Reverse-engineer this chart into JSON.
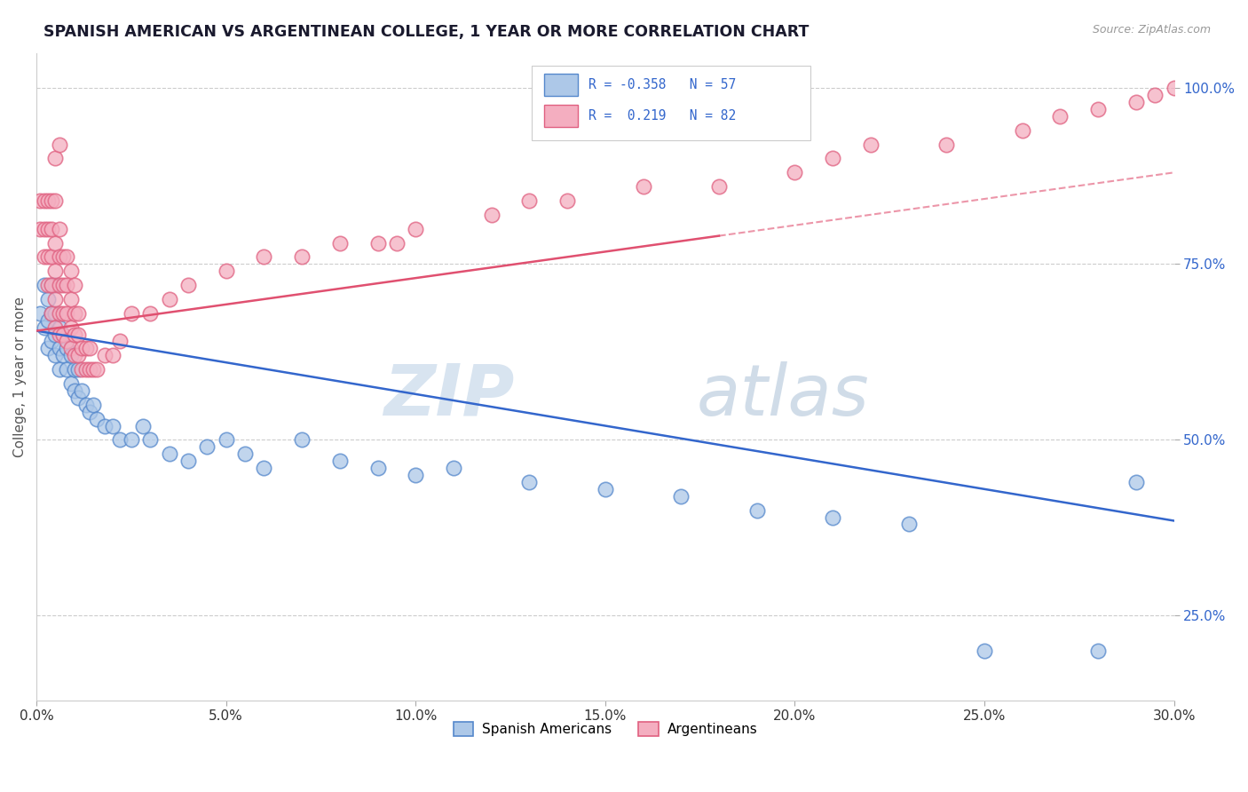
{
  "title": "SPANISH AMERICAN VS ARGENTINEAN COLLEGE, 1 YEAR OR MORE CORRELATION CHART",
  "source": "Source: ZipAtlas.com",
  "ylabel": "College, 1 year or more",
  "xlim": [
    0.0,
    0.3
  ],
  "ylim": [
    0.13,
    1.05
  ],
  "xticks": [
    0.0,
    0.05,
    0.1,
    0.15,
    0.2,
    0.25,
    0.3
  ],
  "yticks": [
    0.25,
    0.5,
    0.75,
    1.0
  ],
  "ytick_labels": [
    "25.0%",
    "50.0%",
    "75.0%",
    "100.0%"
  ],
  "xtick_labels": [
    "0.0%",
    "5.0%",
    "10.0%",
    "15.0%",
    "20.0%",
    "25.0%",
    "30.0%"
  ],
  "blue_R": -0.358,
  "blue_N": 57,
  "pink_R": 0.219,
  "pink_N": 82,
  "blue_color": "#adc8e8",
  "pink_color": "#f4aec0",
  "blue_edge_color": "#5588cc",
  "pink_edge_color": "#e06080",
  "blue_line_color": "#3366cc",
  "pink_line_color": "#e05070",
  "watermark_zip": "ZIP",
  "watermark_atlas": "atlas",
  "legend_blue_label": "Spanish Americans",
  "legend_pink_label": "Argentineans",
  "blue_line_y0": 0.655,
  "blue_line_y1": 0.385,
  "pink_line_y0": 0.655,
  "pink_line_y1": 0.88,
  "blue_scatter_x": [
    0.001,
    0.002,
    0.002,
    0.003,
    0.003,
    0.003,
    0.004,
    0.004,
    0.004,
    0.005,
    0.005,
    0.005,
    0.005,
    0.006,
    0.006,
    0.006,
    0.007,
    0.007,
    0.008,
    0.008,
    0.009,
    0.009,
    0.01,
    0.01,
    0.011,
    0.011,
    0.012,
    0.013,
    0.014,
    0.015,
    0.016,
    0.018,
    0.02,
    0.022,
    0.025,
    0.028,
    0.03,
    0.035,
    0.04,
    0.045,
    0.05,
    0.055,
    0.06,
    0.07,
    0.08,
    0.09,
    0.1,
    0.11,
    0.13,
    0.15,
    0.17,
    0.19,
    0.21,
    0.23,
    0.25,
    0.28,
    0.29
  ],
  "blue_scatter_y": [
    0.68,
    0.66,
    0.72,
    0.63,
    0.67,
    0.7,
    0.64,
    0.68,
    0.72,
    0.62,
    0.65,
    0.68,
    0.72,
    0.6,
    0.63,
    0.66,
    0.62,
    0.65,
    0.6,
    0.63,
    0.58,
    0.62,
    0.57,
    0.6,
    0.56,
    0.6,
    0.57,
    0.55,
    0.54,
    0.55,
    0.53,
    0.52,
    0.52,
    0.5,
    0.5,
    0.52,
    0.5,
    0.48,
    0.47,
    0.49,
    0.5,
    0.48,
    0.46,
    0.5,
    0.47,
    0.46,
    0.45,
    0.46,
    0.44,
    0.43,
    0.42,
    0.4,
    0.39,
    0.38,
    0.2,
    0.2,
    0.44
  ],
  "pink_scatter_x": [
    0.001,
    0.001,
    0.002,
    0.002,
    0.002,
    0.003,
    0.003,
    0.003,
    0.003,
    0.004,
    0.004,
    0.004,
    0.004,
    0.004,
    0.005,
    0.005,
    0.005,
    0.005,
    0.005,
    0.006,
    0.006,
    0.006,
    0.006,
    0.006,
    0.007,
    0.007,
    0.007,
    0.007,
    0.008,
    0.008,
    0.008,
    0.008,
    0.009,
    0.009,
    0.009,
    0.009,
    0.01,
    0.01,
    0.01,
    0.01,
    0.011,
    0.011,
    0.011,
    0.012,
    0.012,
    0.013,
    0.013,
    0.014,
    0.014,
    0.015,
    0.016,
    0.018,
    0.02,
    0.022,
    0.025,
    0.03,
    0.035,
    0.04,
    0.05,
    0.06,
    0.07,
    0.08,
    0.09,
    0.1,
    0.12,
    0.13,
    0.14,
    0.16,
    0.18,
    0.2,
    0.21,
    0.22,
    0.24,
    0.26,
    0.27,
    0.28,
    0.29,
    0.295,
    0.3,
    0.095,
    0.005,
    0.006
  ],
  "pink_scatter_y": [
    0.8,
    0.84,
    0.76,
    0.8,
    0.84,
    0.72,
    0.76,
    0.8,
    0.84,
    0.68,
    0.72,
    0.76,
    0.8,
    0.84,
    0.66,
    0.7,
    0.74,
    0.78,
    0.84,
    0.65,
    0.68,
    0.72,
    0.76,
    0.8,
    0.65,
    0.68,
    0.72,
    0.76,
    0.64,
    0.68,
    0.72,
    0.76,
    0.63,
    0.66,
    0.7,
    0.74,
    0.62,
    0.65,
    0.68,
    0.72,
    0.62,
    0.65,
    0.68,
    0.6,
    0.63,
    0.6,
    0.63,
    0.6,
    0.63,
    0.6,
    0.6,
    0.62,
    0.62,
    0.64,
    0.68,
    0.68,
    0.7,
    0.72,
    0.74,
    0.76,
    0.76,
    0.78,
    0.78,
    0.8,
    0.82,
    0.84,
    0.84,
    0.86,
    0.86,
    0.88,
    0.9,
    0.92,
    0.92,
    0.94,
    0.96,
    0.97,
    0.98,
    0.99,
    1.0,
    0.78,
    0.9,
    0.92
  ]
}
